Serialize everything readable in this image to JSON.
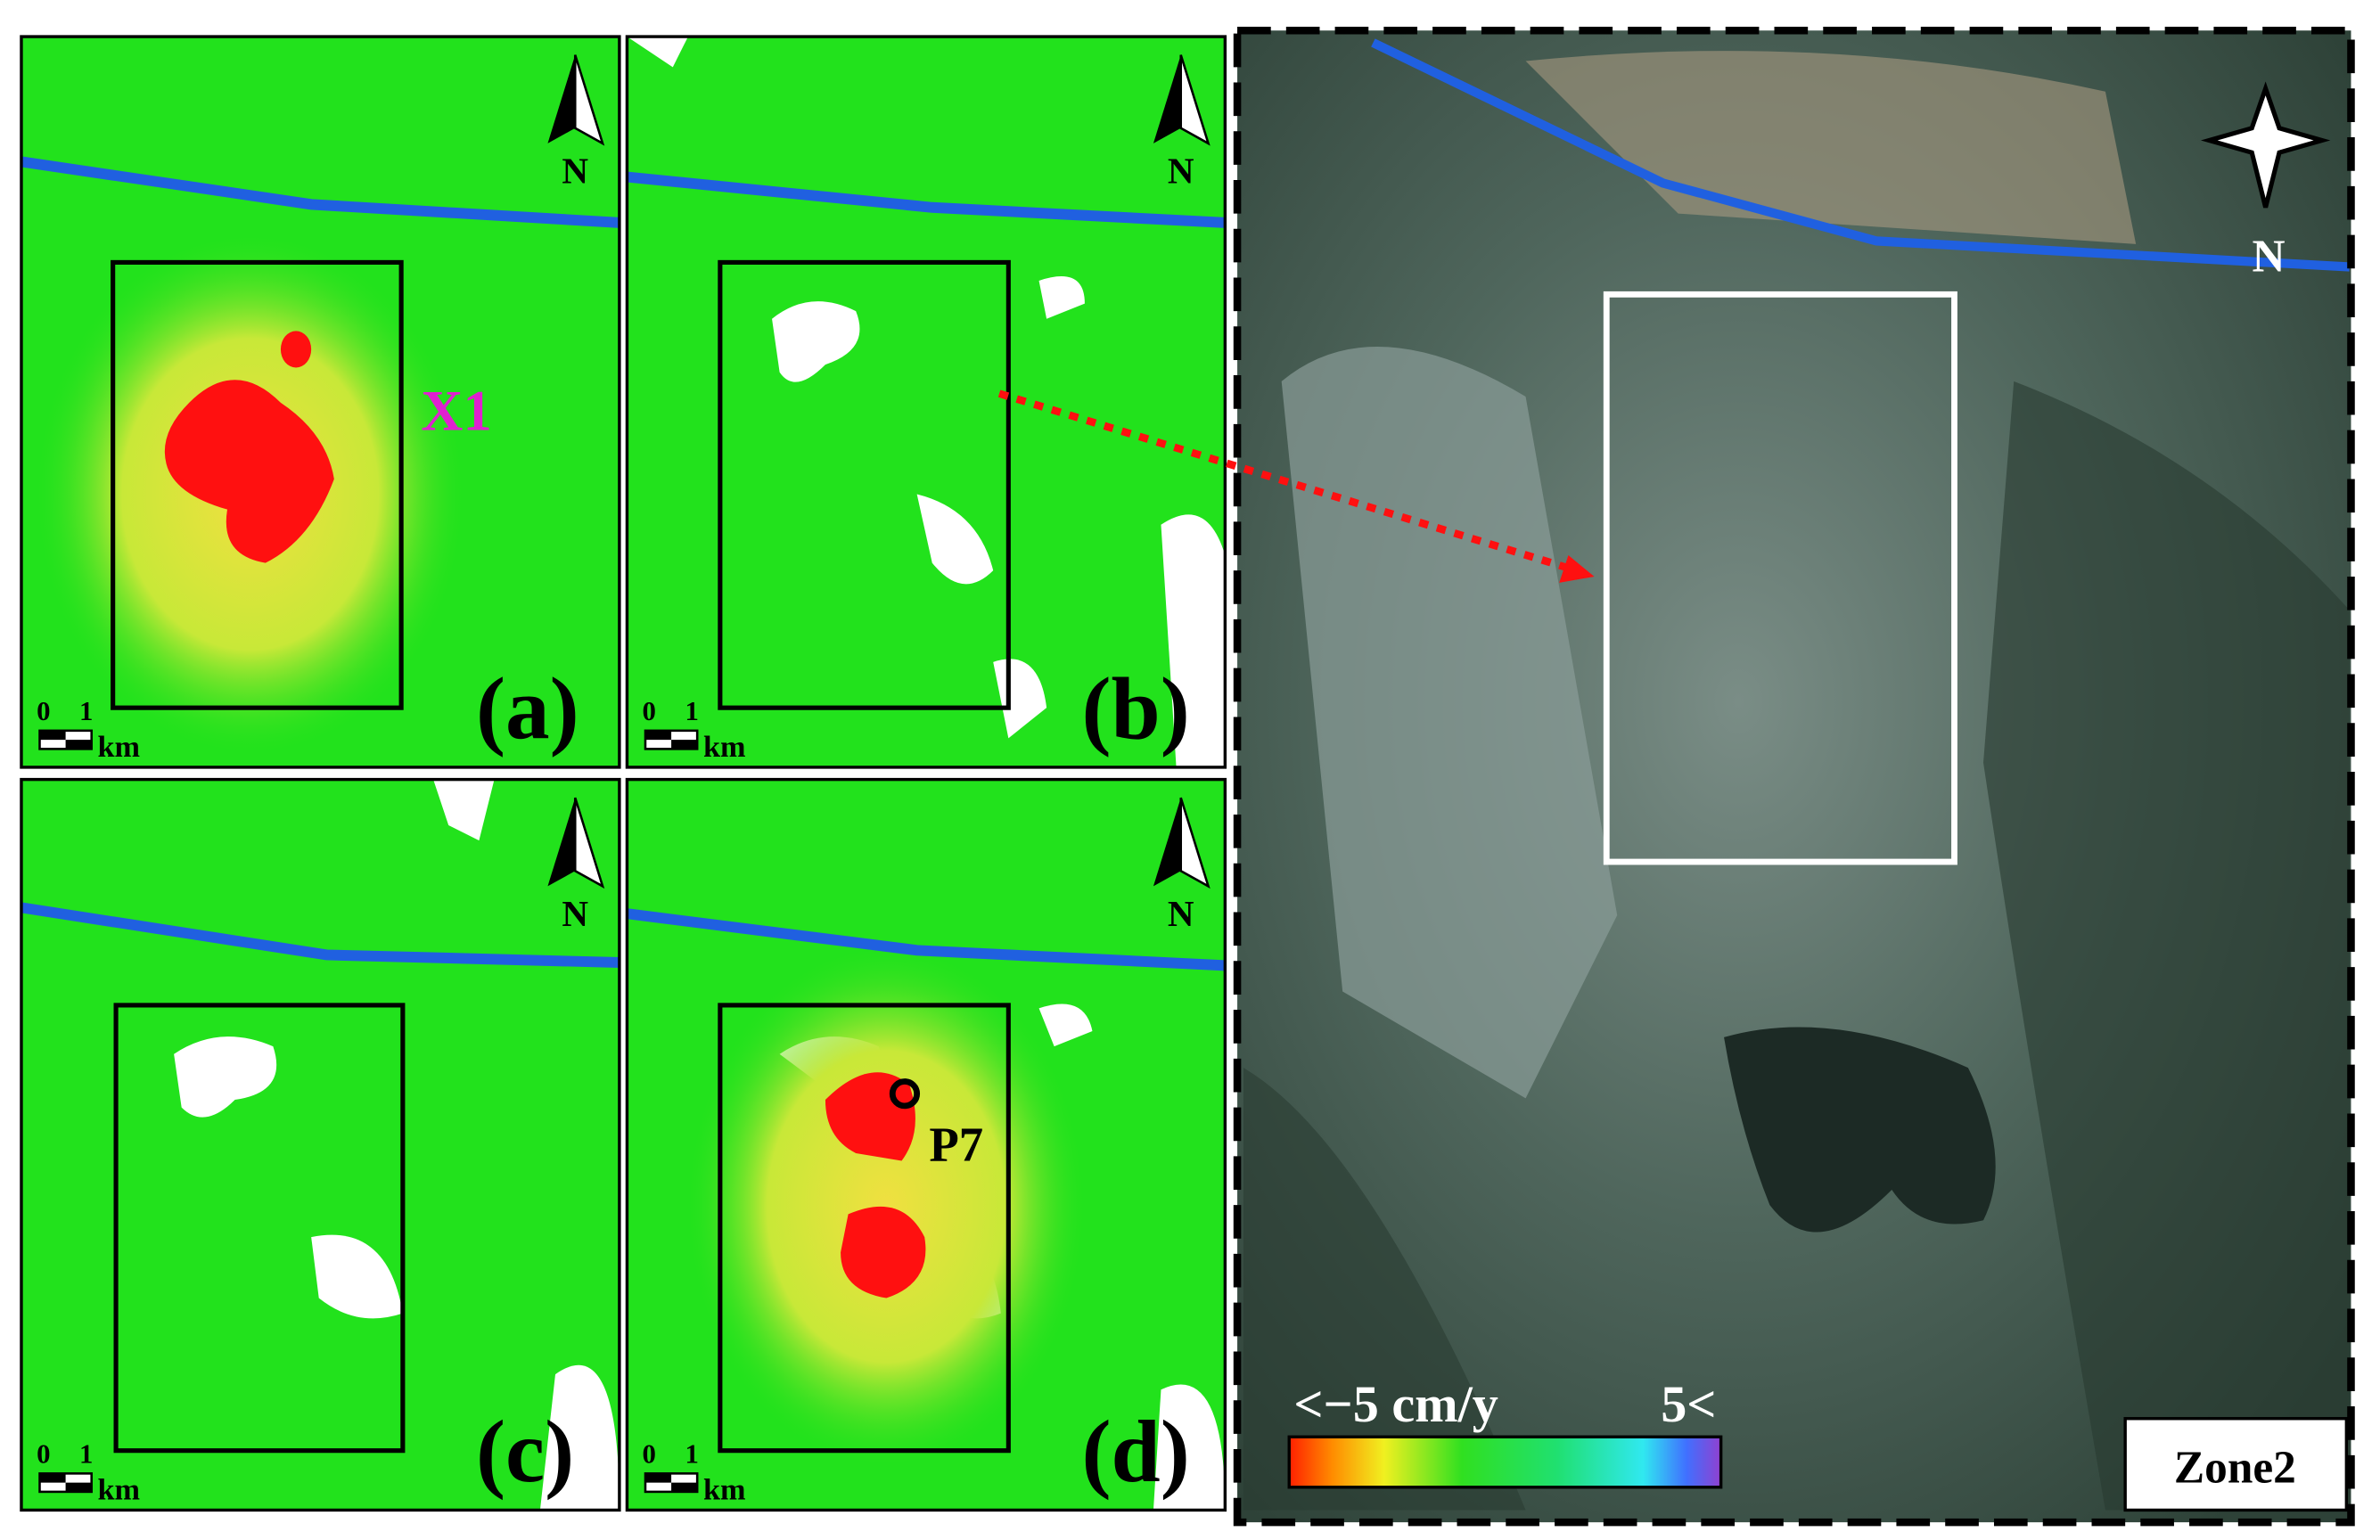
{
  "panels": [
    {
      "label": "(a)",
      "north": "N",
      "scale": {
        "zero": "0",
        "one": "1",
        "unit": "km"
      }
    },
    {
      "label": "(b)",
      "north": "N",
      "scale": {
        "zero": "0",
        "one": "1",
        "unit": "km"
      }
    },
    {
      "label": "(c)",
      "north": "N",
      "scale": {
        "zero": "0",
        "one": "1",
        "unit": "km"
      }
    },
    {
      "label": "(d)",
      "north": "N",
      "scale": {
        "zero": "0",
        "one": "1",
        "unit": "km"
      }
    }
  ],
  "annotations": {
    "x1": "X1",
    "p7": "P7"
  },
  "overview": {
    "north": "N",
    "legend": {
      "min_label": "<−5 cm/y",
      "max_label": "5<"
    },
    "zone": "Zone2"
  }
}
